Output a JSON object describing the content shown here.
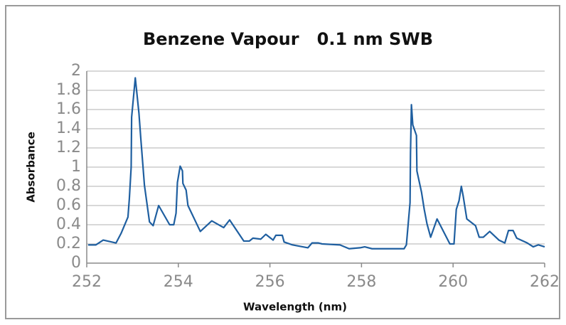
{
  "chart_data": {
    "type": "line",
    "title": "Benzene Vapour   0.1 nm SWB",
    "xlabel": "Wavelength (nm)",
    "ylabel": "Absorbance",
    "xlim": [
      252,
      262
    ],
    "xticks": [
      252,
      254,
      256,
      258,
      260,
      262
    ],
    "ylim": [
      0,
      2
    ],
    "yticks": [
      0,
      0.2,
      0.4,
      0.6,
      0.8,
      1,
      1.2,
      1.4,
      1.6,
      1.8,
      2
    ],
    "grid": true,
    "series": [
      {
        "name": "Absorbance",
        "color": "#1f5fa0",
        "x": [
          252.03,
          252.2,
          252.36,
          252.64,
          252.75,
          252.9,
          252.93,
          252.97,
          252.98,
          253.06,
          253.14,
          253.18,
          253.26,
          253.37,
          253.45,
          253.57,
          253.81,
          253.9,
          253.95,
          253.98,
          254.04,
          254.09,
          254.1,
          254.17,
          254.21,
          254.48,
          254.73,
          254.99,
          255.12,
          255.43,
          255.55,
          255.63,
          255.8,
          255.91,
          256.07,
          256.13,
          256.27,
          256.31,
          256.49,
          256.83,
          256.92,
          257.06,
          257.14,
          257.53,
          257.73,
          257.97,
          258.07,
          258.23,
          258.74,
          258.93,
          258.98,
          259.02,
          259.06,
          259.07,
          259.09,
          259.12,
          259.2,
          259.21,
          259.31,
          259.37,
          259.43,
          259.51,
          259.65,
          259.93,
          260.02,
          260.07,
          260.13,
          260.18,
          260.22,
          260.3,
          260.49,
          260.57,
          260.66,
          260.8,
          261.0,
          261.13,
          261.21,
          261.31,
          261.39,
          261.62,
          261.75,
          261.86,
          262
        ],
        "values": [
          0.19,
          0.19,
          0.24,
          0.21,
          0.31,
          0.48,
          0.67,
          1.0,
          1.52,
          1.93,
          1.56,
          1.3,
          0.81,
          0.43,
          0.39,
          0.6,
          0.4,
          0.4,
          0.52,
          0.84,
          1.01,
          0.96,
          0.83,
          0.76,
          0.6,
          0.33,
          0.44,
          0.37,
          0.45,
          0.23,
          0.23,
          0.26,
          0.25,
          0.3,
          0.24,
          0.29,
          0.29,
          0.22,
          0.19,
          0.16,
          0.21,
          0.21,
          0.2,
          0.19,
          0.15,
          0.16,
          0.17,
          0.15,
          0.15,
          0.15,
          0.19,
          0.41,
          0.63,
          1.15,
          1.65,
          1.44,
          1.33,
          0.96,
          0.74,
          0.56,
          0.41,
          0.27,
          0.46,
          0.2,
          0.2,
          0.56,
          0.65,
          0.8,
          0.7,
          0.46,
          0.39,
          0.27,
          0.27,
          0.33,
          0.24,
          0.21,
          0.34,
          0.34,
          0.26,
          0.21,
          0.17,
          0.19,
          0.17
        ]
      }
    ]
  }
}
